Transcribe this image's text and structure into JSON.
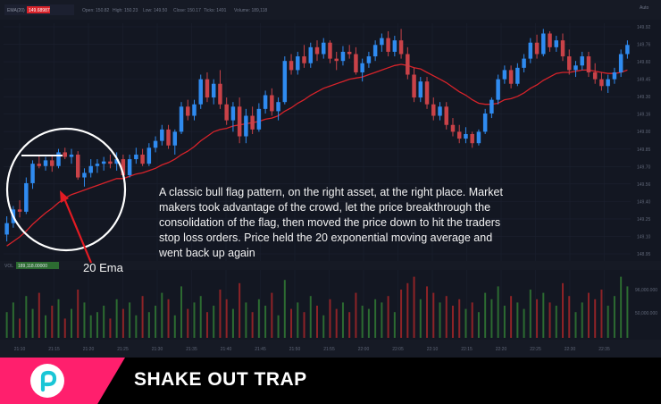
{
  "header": {
    "symbol_label": "EMA(20)",
    "ema_value": "149.68987",
    "ohlc": [
      {
        "label": "Open:",
        "value": "150.82"
      },
      {
        "label": "High:",
        "value": "150.23"
      },
      {
        "label": "Low:",
        "value": "149.50"
      },
      {
        "label": "Close:",
        "value": "150.17"
      },
      {
        "label": "Ticks:",
        "value": "1491"
      },
      {
        "label": "Volume:",
        "value": "189,118"
      }
    ],
    "auto_label": "Auto"
  },
  "volume_header": {
    "label": "VOL",
    "value": "189,118.00000"
  },
  "annotation": {
    "text_lines": [
      "A classic bull flag pattern, on the right asset, at the right place. Market",
      "makers took advantage of the crowd, let the price breakthrough the",
      "consolidation of the flag, then moved the price down to hit the traders",
      "stop loss orders. Price held the 20 exponential moving average and",
      "went back up again"
    ],
    "ema_label": "20 Ema"
  },
  "banner": {
    "title": "SHAKE OUT TRAP",
    "logo_icon": "p-logo-icon",
    "accent_color": "#ff1f6d"
  },
  "colors": {
    "background": "#131722",
    "up_candle": "#2f8bf0",
    "down_candle": "#c94248",
    "ema_line": "#d8232a",
    "up_volume": "#2c6b31",
    "down_volume": "#8e2327",
    "arrow": "#e31b23"
  },
  "chart_data": {
    "type": "candlestick",
    "price_axis_labels": [
      "149.92",
      "149.76",
      "149.60",
      "149.45",
      "149.30",
      "149.16",
      "149.00",
      "149.85",
      "149.70",
      "149.56",
      "149.40",
      "149.25",
      "149.10",
      "148.95"
    ],
    "volume_axis_labels": [
      "96,000.000",
      "50,000.000"
    ],
    "time_labels": [
      "21:10",
      "21:15",
      "21:20",
      "21:25",
      "21:30",
      "21:35",
      "21:40",
      "21:45",
      "21:50",
      "21:55",
      "22:00",
      "22:05",
      "22:10",
      "22:15",
      "22:20",
      "22:25",
      "22:30",
      "22:35"
    ],
    "candles": [
      {
        "o": 149.8,
        "h": 149.96,
        "l": 149.74,
        "c": 149.9
      },
      {
        "o": 149.9,
        "h": 150.05,
        "l": 149.86,
        "c": 150.02
      },
      {
        "o": 150.02,
        "h": 150.1,
        "l": 149.95,
        "c": 150.0
      },
      {
        "o": 150.0,
        "h": 150.3,
        "l": 149.98,
        "c": 150.25
      },
      {
        "o": 150.25,
        "h": 150.45,
        "l": 150.2,
        "c": 150.42
      },
      {
        "o": 150.42,
        "h": 150.5,
        "l": 150.38,
        "c": 150.4
      },
      {
        "o": 150.4,
        "h": 150.48,
        "l": 150.36,
        "c": 150.45
      },
      {
        "o": 150.45,
        "h": 150.5,
        "l": 150.35,
        "c": 150.4
      },
      {
        "o": 150.4,
        "h": 150.55,
        "l": 150.38,
        "c": 150.52
      },
      {
        "o": 150.52,
        "h": 150.56,
        "l": 150.46,
        "c": 150.48
      },
      {
        "o": 150.48,
        "h": 150.55,
        "l": 150.42,
        "c": 150.5
      },
      {
        "o": 150.5,
        "h": 150.53,
        "l": 150.28,
        "c": 150.3
      },
      {
        "o": 150.3,
        "h": 150.38,
        "l": 150.22,
        "c": 150.34
      },
      {
        "o": 150.34,
        "h": 150.46,
        "l": 150.3,
        "c": 150.4
      },
      {
        "o": 150.4,
        "h": 150.46,
        "l": 150.34,
        "c": 150.42
      },
      {
        "o": 150.42,
        "h": 150.48,
        "l": 150.36,
        "c": 150.44
      },
      {
        "o": 150.44,
        "h": 150.5,
        "l": 150.38,
        "c": 150.42
      },
      {
        "o": 150.42,
        "h": 150.52,
        "l": 150.36,
        "c": 150.46
      },
      {
        "o": 150.46,
        "h": 150.5,
        "l": 150.3,
        "c": 150.32
      },
      {
        "o": 150.32,
        "h": 150.5,
        "l": 150.3,
        "c": 150.46
      },
      {
        "o": 150.46,
        "h": 150.56,
        "l": 150.42,
        "c": 150.5
      },
      {
        "o": 150.5,
        "h": 150.55,
        "l": 150.4,
        "c": 150.42
      },
      {
        "o": 150.42,
        "h": 150.6,
        "l": 150.4,
        "c": 150.56
      },
      {
        "o": 150.56,
        "h": 150.66,
        "l": 150.52,
        "c": 150.62
      },
      {
        "o": 150.62,
        "h": 150.76,
        "l": 150.58,
        "c": 150.72
      },
      {
        "o": 150.72,
        "h": 150.76,
        "l": 150.55,
        "c": 150.58
      },
      {
        "o": 150.58,
        "h": 150.72,
        "l": 150.5,
        "c": 150.7
      },
      {
        "o": 150.7,
        "h": 150.96,
        "l": 150.68,
        "c": 150.92
      },
      {
        "o": 150.92,
        "h": 150.98,
        "l": 150.8,
        "c": 150.84
      },
      {
        "o": 150.84,
        "h": 150.98,
        "l": 150.8,
        "c": 150.94
      },
      {
        "o": 150.94,
        "h": 151.2,
        "l": 150.9,
        "c": 151.16
      },
      {
        "o": 151.16,
        "h": 151.22,
        "l": 150.96,
        "c": 151.0
      },
      {
        "o": 151.0,
        "h": 151.16,
        "l": 150.94,
        "c": 151.12
      },
      {
        "o": 151.12,
        "h": 151.24,
        "l": 150.9,
        "c": 150.94
      },
      {
        "o": 150.94,
        "h": 151.0,
        "l": 150.76,
        "c": 150.8
      },
      {
        "o": 150.8,
        "h": 150.96,
        "l": 150.7,
        "c": 150.92
      },
      {
        "o": 150.92,
        "h": 151.0,
        "l": 150.6,
        "c": 150.66
      },
      {
        "o": 150.66,
        "h": 150.9,
        "l": 150.6,
        "c": 150.84
      },
      {
        "o": 150.84,
        "h": 150.92,
        "l": 150.68,
        "c": 150.72
      },
      {
        "o": 150.72,
        "h": 150.95,
        "l": 150.7,
        "c": 150.9
      },
      {
        "o": 150.9,
        "h": 151.06,
        "l": 150.86,
        "c": 151.02
      },
      {
        "o": 151.02,
        "h": 151.08,
        "l": 150.84,
        "c": 150.88
      },
      {
        "o": 150.88,
        "h": 151.0,
        "l": 150.8,
        "c": 150.96
      },
      {
        "o": 150.96,
        "h": 151.36,
        "l": 150.94,
        "c": 151.32
      },
      {
        "o": 151.32,
        "h": 151.38,
        "l": 151.2,
        "c": 151.24
      },
      {
        "o": 151.24,
        "h": 151.4,
        "l": 151.2,
        "c": 151.36
      },
      {
        "o": 151.36,
        "h": 151.46,
        "l": 151.26,
        "c": 151.3
      },
      {
        "o": 151.3,
        "h": 151.48,
        "l": 151.26,
        "c": 151.44
      },
      {
        "o": 151.44,
        "h": 151.5,
        "l": 151.32,
        "c": 151.38
      },
      {
        "o": 151.38,
        "h": 151.52,
        "l": 151.34,
        "c": 151.48
      },
      {
        "o": 151.48,
        "h": 151.5,
        "l": 151.3,
        "c": 151.34
      },
      {
        "o": 151.34,
        "h": 151.4,
        "l": 151.24,
        "c": 151.32
      },
      {
        "o": 151.32,
        "h": 151.45,
        "l": 151.28,
        "c": 151.4
      },
      {
        "o": 151.4,
        "h": 151.46,
        "l": 151.34,
        "c": 151.38
      },
      {
        "o": 151.38,
        "h": 151.44,
        "l": 151.2,
        "c": 151.22
      },
      {
        "o": 151.22,
        "h": 151.34,
        "l": 151.14,
        "c": 151.3
      },
      {
        "o": 151.3,
        "h": 151.4,
        "l": 151.26,
        "c": 151.36
      },
      {
        "o": 151.36,
        "h": 151.5,
        "l": 151.32,
        "c": 151.46
      },
      {
        "o": 151.46,
        "h": 151.56,
        "l": 151.4,
        "c": 151.52
      },
      {
        "o": 151.52,
        "h": 151.58,
        "l": 151.36,
        "c": 151.4
      },
      {
        "o": 151.4,
        "h": 151.54,
        "l": 151.36,
        "c": 151.5
      },
      {
        "o": 151.5,
        "h": 151.6,
        "l": 151.34,
        "c": 151.38
      },
      {
        "o": 151.38,
        "h": 151.44,
        "l": 151.16,
        "c": 151.2
      },
      {
        "o": 151.2,
        "h": 151.26,
        "l": 150.96,
        "c": 151.0
      },
      {
        "o": 151.0,
        "h": 151.18,
        "l": 150.96,
        "c": 151.14
      },
      {
        "o": 151.14,
        "h": 151.18,
        "l": 150.9,
        "c": 150.94
      },
      {
        "o": 150.94,
        "h": 151.0,
        "l": 150.8,
        "c": 150.84
      },
      {
        "o": 150.84,
        "h": 150.96,
        "l": 150.8,
        "c": 150.92
      },
      {
        "o": 150.92,
        "h": 150.96,
        "l": 150.72,
        "c": 150.76
      },
      {
        "o": 150.76,
        "h": 150.82,
        "l": 150.66,
        "c": 150.7
      },
      {
        "o": 150.7,
        "h": 150.76,
        "l": 150.6,
        "c": 150.64
      },
      {
        "o": 150.64,
        "h": 150.74,
        "l": 150.6,
        "c": 150.68
      },
      {
        "o": 150.68,
        "h": 150.7,
        "l": 150.56,
        "c": 150.6
      },
      {
        "o": 150.6,
        "h": 150.72,
        "l": 150.58,
        "c": 150.7
      },
      {
        "o": 150.7,
        "h": 150.9,
        "l": 150.68,
        "c": 150.86
      },
      {
        "o": 150.86,
        "h": 151.0,
        "l": 150.82,
        "c": 150.98
      },
      {
        "o": 150.98,
        "h": 151.2,
        "l": 150.94,
        "c": 151.16
      },
      {
        "o": 151.16,
        "h": 151.28,
        "l": 151.12,
        "c": 151.24
      },
      {
        "o": 151.24,
        "h": 151.28,
        "l": 151.08,
        "c": 151.12
      },
      {
        "o": 151.12,
        "h": 151.3,
        "l": 151.1,
        "c": 151.26
      },
      {
        "o": 151.26,
        "h": 151.38,
        "l": 151.22,
        "c": 151.34
      },
      {
        "o": 151.34,
        "h": 151.52,
        "l": 151.3,
        "c": 151.48
      },
      {
        "o": 151.48,
        "h": 151.55,
        "l": 151.34,
        "c": 151.38
      },
      {
        "o": 151.38,
        "h": 151.6,
        "l": 151.36,
        "c": 151.56
      },
      {
        "o": 151.56,
        "h": 151.58,
        "l": 151.4,
        "c": 151.44
      },
      {
        "o": 151.44,
        "h": 151.54,
        "l": 151.4,
        "c": 151.5
      },
      {
        "o": 151.5,
        "h": 151.56,
        "l": 151.32,
        "c": 151.36
      },
      {
        "o": 151.36,
        "h": 151.42,
        "l": 151.2,
        "c": 151.24
      },
      {
        "o": 151.24,
        "h": 151.32,
        "l": 151.18,
        "c": 151.28
      },
      {
        "o": 151.28,
        "h": 151.4,
        "l": 151.24,
        "c": 151.36
      },
      {
        "o": 151.36,
        "h": 151.4,
        "l": 151.18,
        "c": 151.22
      },
      {
        "o": 151.22,
        "h": 151.3,
        "l": 151.12,
        "c": 151.16
      },
      {
        "o": 151.16,
        "h": 151.22,
        "l": 151.06,
        "c": 151.1
      },
      {
        "o": 151.1,
        "h": 151.2,
        "l": 151.04,
        "c": 151.16
      },
      {
        "o": 151.16,
        "h": 151.26,
        "l": 151.12,
        "c": 151.22
      },
      {
        "o": 151.22,
        "h": 151.42,
        "l": 151.18,
        "c": 151.38
      },
      {
        "o": 151.38,
        "h": 151.5,
        "l": 151.34,
        "c": 151.46
      }
    ],
    "ema": [
      149.7,
      149.74,
      149.78,
      149.83,
      149.89,
      149.94,
      149.99,
      150.03,
      150.08,
      150.12,
      150.15,
      150.17,
      150.19,
      150.21,
      150.23,
      150.25,
      150.27,
      150.29,
      150.29,
      150.31,
      150.33,
      150.34,
      150.36,
      150.38,
      150.41,
      150.43,
      150.46,
      150.5,
      150.53,
      150.57,
      150.62,
      150.66,
      150.7,
      150.72,
      150.73,
      150.75,
      150.76,
      150.77,
      150.78,
      150.79,
      150.81,
      150.82,
      150.84,
      150.88,
      150.91,
      150.95,
      150.98,
      151.02,
      151.05,
      151.08,
      151.1,
      151.12,
      151.14,
      151.16,
      151.17,
      151.18,
      151.2,
      151.22,
      151.24,
      151.26,
      151.28,
      151.29,
      151.28,
      151.26,
      151.25,
      151.22,
      151.19,
      151.16,
      151.13,
      151.09,
      151.05,
      151.02,
      150.98,
      150.95,
      150.94,
      150.94,
      150.95,
      150.98,
      150.99,
      151.01,
      151.04,
      151.08,
      151.11,
      151.15,
      151.18,
      151.21,
      151.22,
      151.22,
      151.23,
      151.24,
      151.24,
      151.23,
      151.22,
      151.21,
      151.21,
      151.22,
      151.24
    ],
    "volume": [
      0.4,
      0.55,
      0.3,
      0.65,
      0.45,
      0.7,
      0.35,
      0.5,
      0.6,
      0.3,
      0.45,
      0.75,
      0.55,
      0.35,
      0.4,
      0.5,
      0.3,
      0.6,
      0.45,
      0.55,
      0.35,
      0.65,
      0.4,
      0.5,
      0.7,
      0.6,
      0.35,
      0.8,
      0.45,
      0.55,
      0.65,
      0.4,
      0.5,
      0.75,
      0.6,
      0.45,
      0.85,
      0.55,
      0.4,
      0.6,
      0.5,
      0.7,
      0.35,
      0.9,
      0.45,
      0.55,
      0.4,
      0.65,
      0.5,
      0.35,
      0.6,
      0.45,
      0.55,
      0.4,
      0.7,
      0.5,
      0.45,
      0.6,
      0.55,
      0.65,
      0.4,
      0.75,
      0.85,
      0.95,
      0.6,
      0.8,
      0.7,
      0.55,
      0.65,
      0.5,
      0.6,
      0.45,
      0.55,
      0.4,
      0.7,
      0.6,
      0.8,
      0.5,
      0.65,
      0.55,
      0.45,
      0.75,
      0.6,
      0.7,
      0.55,
      0.5,
      0.85,
      0.65,
      0.4,
      0.55,
      0.7,
      0.6,
      0.75,
      0.5,
      0.65,
      0.95,
      0.8
    ],
    "ylim": [
      149.6,
      151.65
    ]
  }
}
